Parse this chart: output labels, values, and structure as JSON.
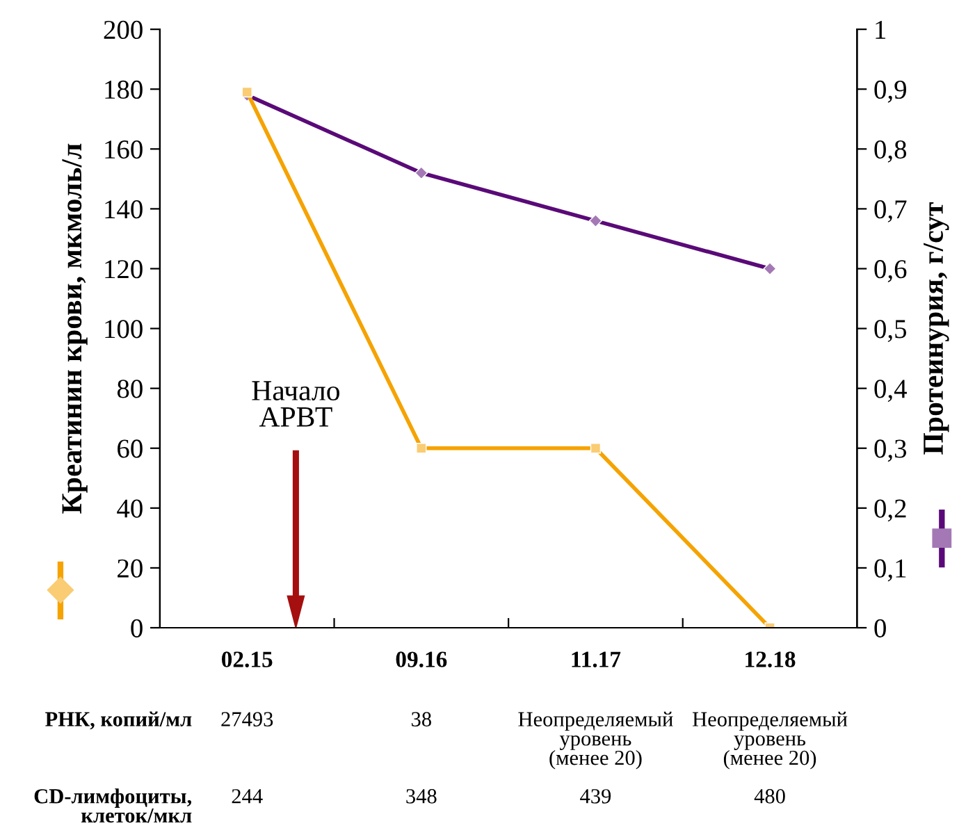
{
  "chart_data": {
    "type": "line",
    "categories": [
      "02.15",
      "09.16",
      "11.17",
      "12.18"
    ],
    "series": [
      {
        "color": "#f5a300",
        "values": [
          179,
          60,
          60,
          0
        ],
        "marker": "square"
      },
      {
        "color": "#5a0a78",
        "values": [
          0.89,
          0.76,
          0.68,
          0.6
        ],
        "axis": "y2",
        "marker": "diamond"
      }
    ],
    "ylabel": "Креатинин крови, мкмоль/л",
    "y2label": "Протеинурия, г/сут",
    "ylim": [
      0,
      200
    ],
    "yticks": [
      0,
      20,
      40,
      60,
      80,
      100,
      120,
      140,
      160,
      180,
      200
    ],
    "y2lim": [
      0,
      1
    ],
    "y2ticks": [
      0,
      {
        "value": 0.1,
        "label": "0,1"
      },
      {
        "value": 0.2,
        "label": "0,2"
      },
      {
        "value": 0.3,
        "label": "0,3"
      },
      {
        "value": 0.4,
        "label": "0,4"
      },
      {
        "value": 0.5,
        "label": "0,5"
      },
      {
        "value": 0.6,
        "label": "0,6"
      },
      {
        "value": 0.7,
        "label": "0,7"
      },
      {
        "value": 0.8,
        "label": "0,8"
      },
      {
        "value": 0.9,
        "label": "0,9"
      },
      1
    ],
    "grid": false,
    "legend": false,
    "line_style": "solid",
    "annotations": [
      "Начало\nАРВТ",
      "РНК, копий/мл",
      "27493",
      "38",
      "Неопределяемый\nуровень\n(менее 20)",
      "Неопределяемый\nуровень\n(менее 20)",
      "CD-лимфоциты,\nклеток/мкл",
      "244",
      "348",
      "439",
      "480"
    ]
  }
}
